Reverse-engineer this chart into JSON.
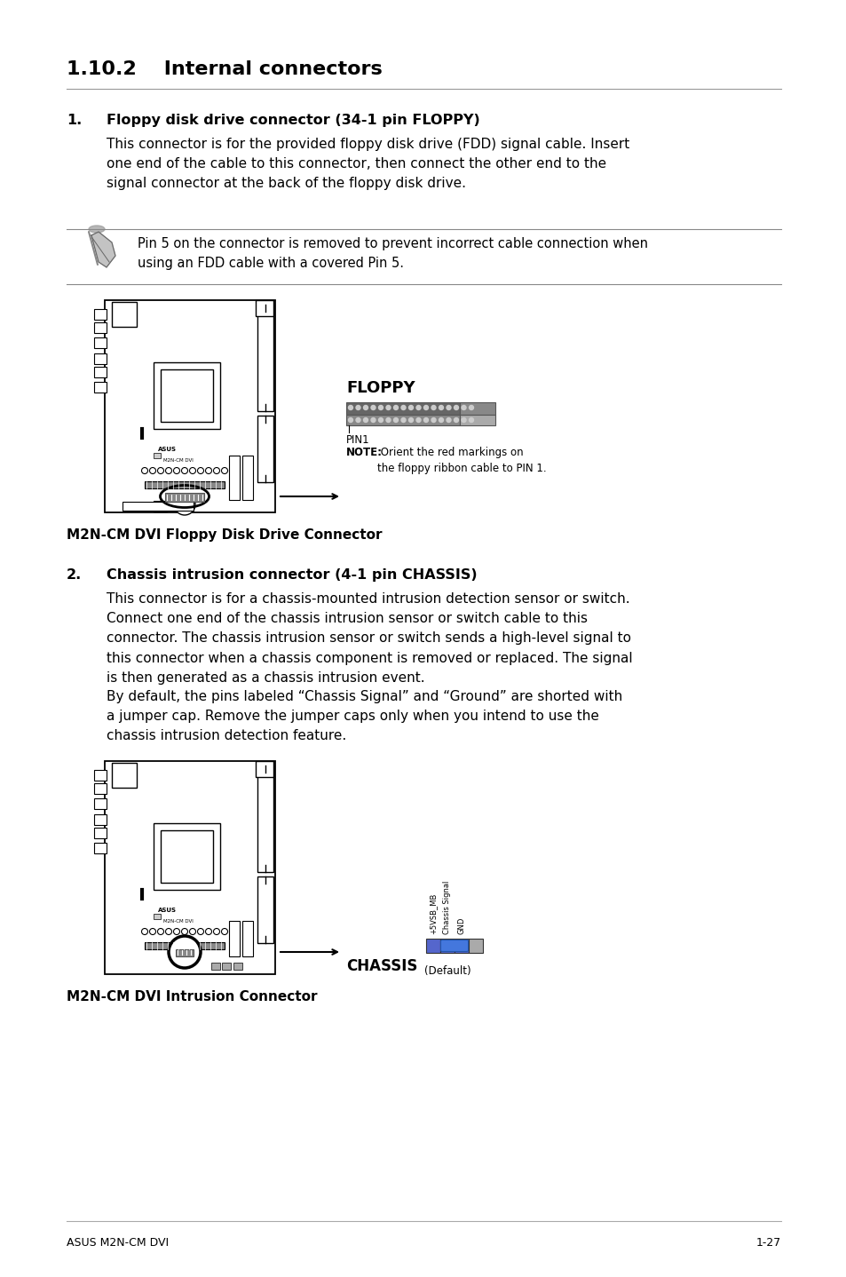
{
  "page_bg": "#ffffff",
  "header_title": "1.10.2    Internal connectors",
  "footer_left": "ASUS M2N-CM DVI",
  "footer_right": "1-27",
  "section1_num": "1.",
  "section1_title": "Floppy disk drive connector (34-1 pin FLOPPY)",
  "section1_body": "This connector is for the provided floppy disk drive (FDD) signal cable. Insert\none end of the cable to this connector, then connect the other end to the\nsignal connector at the back of the floppy disk drive.",
  "note1_text": "Pin 5 on the connector is removed to prevent incorrect cable connection when\nusing an FDD cable with a covered Pin 5.",
  "fig1_label": "FLOPPY",
  "fig1_pin1": "PIN1",
  "fig1_note_bold": "NOTE:",
  "fig1_note_rest": " Orient the red markings on\nthe floppy ribbon cable to PIN 1.",
  "fig1_caption": "M2N-CM DVI Floppy Disk Drive Connector",
  "section2_num": "2.",
  "section2_title": "Chassis intrusion connector (4-1 pin CHASSIS)",
  "section2_body1": "This connector is for a chassis-mounted intrusion detection sensor or switch.\nConnect one end of the chassis intrusion sensor or switch cable to this\nconnector. The chassis intrusion sensor or switch sends a high-level signal to\nthis connector when a chassis component is removed or replaced. The signal\nis then generated as a chassis intrusion event.",
  "section2_body2": "By default, the pins labeled “Chassis Signal” and “Ground” are shorted with\na jumper cap. Remove the jumper caps only when you intend to use the\nchassis intrusion detection feature.",
  "fig2_label": "CHASSIS",
  "fig2_pin_labels": [
    "+5VSB_MB",
    "Chassis Signal",
    "GND"
  ],
  "fig2_default": "(Default)",
  "fig2_caption": "M2N-CM DVI Intrusion Connector"
}
